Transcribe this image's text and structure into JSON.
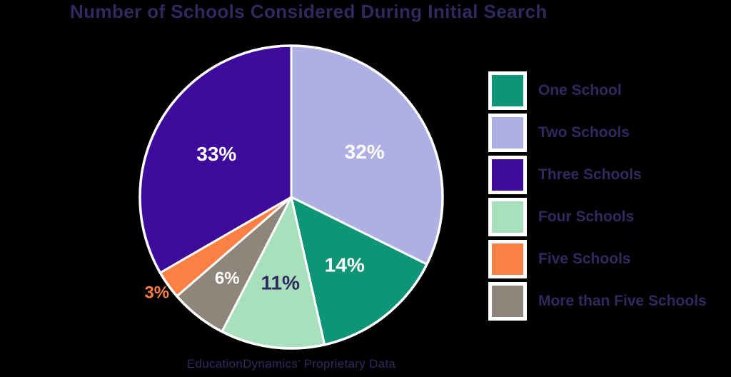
{
  "page": {
    "background": "#000000",
    "text_color": "#2f2a5e",
    "title": "Number of Schools Considered During Initial Search",
    "footer": "EducationDynamics’ Proprietary Data"
  },
  "chart_data": {
    "type": "pie",
    "title": "Number of Schools Considered During Initial Search",
    "source_note": "EducationDynamics’ Proprietary Data",
    "direction": "clockwise",
    "start_angle_deg": 0,
    "value_suffix": "%",
    "separator_color": "#ffffff",
    "slices": [
      {
        "label": "Two Schools",
        "value": 32,
        "color": "#aeb0e4",
        "label_color": "#ffffff",
        "label_position": "inside"
      },
      {
        "label": "One School",
        "value": 14,
        "color": "#0e9577",
        "label_color": "#ffffff",
        "label_position": "inside"
      },
      {
        "label": "Four Schools",
        "value": 11,
        "color": "#a8e0bd",
        "label_color": "#2f2a5e",
        "label_position": "inside"
      },
      {
        "label": "More than Five Schools",
        "value": 6,
        "color": "#8e867b",
        "label_color": "#ffffff",
        "label_position": "inside"
      },
      {
        "label": "Five Schools",
        "value": 3,
        "color": "#fa8044",
        "label_color": "#fa8044",
        "label_position": "outside"
      },
      {
        "label": "Three Schools",
        "value": 33,
        "color": "#3e0a9c",
        "label_color": "#ffffff",
        "label_position": "inside"
      }
    ],
    "legend_position": "right"
  },
  "legend": {
    "swatch_border_color": "#ffffff",
    "items": [
      {
        "label": "One School",
        "color": "#0e9577"
      },
      {
        "label": "Two Schools",
        "color": "#aeb0e4"
      },
      {
        "label": "Three Schools",
        "color": "#3e0a9c"
      },
      {
        "label": "Four Schools",
        "color": "#a8e0bd"
      },
      {
        "label": "Five Schools",
        "color": "#fa8044"
      },
      {
        "label": "More than Five Schools",
        "color": "#8e867b"
      }
    ]
  }
}
